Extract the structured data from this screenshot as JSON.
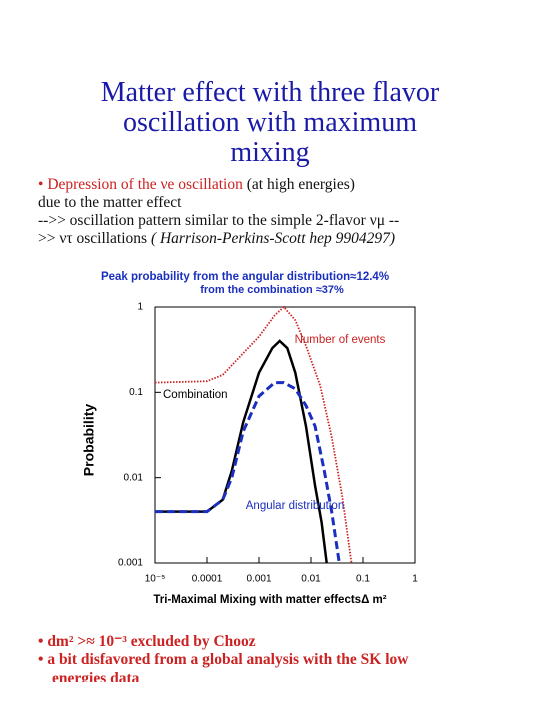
{
  "title": [
    "Matter effect with three flavor",
    "oscillation with maximum",
    "mixing"
  ],
  "intro": {
    "line1_red": "Depression of the νe oscillation",
    "line1_black": "(at high energies)",
    "line2": "due to the matter effect",
    "line3": "-->>  oscillation pattern  similar to the  simple 2-flavor  νμ --",
    "line4": ">> ντ oscillations",
    "line4_italic": "( Harrison-Perkins-Scott hep 9904297)"
  },
  "chart_data": {
    "type": "line",
    "title": "Peak  probability  from  the  angular  distribution≈12.4%",
    "subtitle": "from the combination ≈37%",
    "xlabel": "Tri-Maximal  Mixing  with  matter effectsΔ  m²",
    "ylabel": "Probability",
    "xlog": true,
    "ylog": true,
    "xlim": [
      1e-05,
      1
    ],
    "ylim": [
      0.001,
      1
    ],
    "xticks": [
      {
        "value": 1e-05,
        "label": "10⁻⁵"
      },
      0.0001,
      0.001,
      0.01,
      0.1,
      1
    ],
    "yticks": [
      1,
      0.1,
      0.01,
      0.001
    ],
    "series": [
      {
        "name": "Number  of  events",
        "color": "#cc2222",
        "style": "dotted",
        "x": [
          1e-05,
          0.0001,
          0.0002,
          0.0004,
          0.001,
          0.002,
          0.003,
          0.005,
          0.008,
          0.015,
          0.025,
          0.04,
          0.06
        ],
        "values": [
          0.13,
          0.135,
          0.16,
          0.25,
          0.45,
          0.8,
          1.0,
          0.7,
          0.35,
          0.12,
          0.03,
          0.006,
          0.001
        ]
      },
      {
        "name": "Combination",
        "color": "#000000",
        "style": "solid",
        "x": [
          1e-05,
          0.0001,
          0.0002,
          0.0003,
          0.0005,
          0.001,
          0.0018,
          0.0025,
          0.0035,
          0.005,
          0.008,
          0.012,
          0.016,
          0.02
        ],
        "values": [
          0.004,
          0.004,
          0.0055,
          0.012,
          0.045,
          0.17,
          0.33,
          0.4,
          0.33,
          0.17,
          0.04,
          0.008,
          0.003,
          0.001
        ]
      },
      {
        "name": "Angular  distribution",
        "color": "#1a2fbf",
        "style": "dashed",
        "x": [
          1e-05,
          0.0001,
          0.0002,
          0.0003,
          0.0005,
          0.001,
          0.002,
          0.003,
          0.005,
          0.008,
          0.012,
          0.018,
          0.025,
          0.035
        ],
        "values": [
          0.004,
          0.004,
          0.0055,
          0.01,
          0.035,
          0.09,
          0.13,
          0.13,
          0.11,
          0.07,
          0.04,
          0.012,
          0.004,
          0.001
        ]
      }
    ]
  },
  "bullets": [
    "dm² >≈ 10⁻³ excluded by Chooz",
    "a bit disfavored from a global analysis with the SK low",
    "energies data"
  ]
}
